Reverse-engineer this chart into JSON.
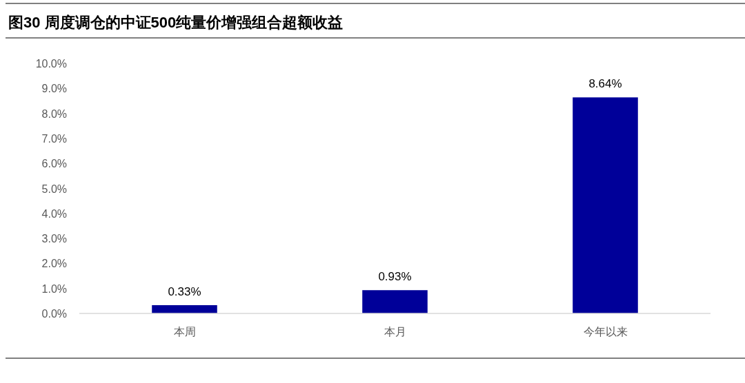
{
  "chart_data": {
    "type": "bar",
    "title": "图30 周度调仓的中证500纯量价增强组合超额收益",
    "categories": [
      "本周",
      "本月",
      "今年以来"
    ],
    "values": [
      0.33,
      0.93,
      8.64
    ],
    "value_labels": [
      "0.33%",
      "0.93%",
      "8.64%"
    ],
    "color": "#000099",
    "ylim": [
      0,
      10
    ],
    "yticks": [
      {
        "value": 0,
        "label": "0.0%"
      },
      {
        "value": 1,
        "label": "1.0%"
      },
      {
        "value": 2,
        "label": "2.0%"
      },
      {
        "value": 3,
        "label": "3.0%"
      },
      {
        "value": 4,
        "label": "4.0%"
      },
      {
        "value": 5,
        "label": "5.0%"
      },
      {
        "value": 6,
        "label": "6.0%"
      },
      {
        "value": 7,
        "label": "7.0%"
      },
      {
        "value": 8,
        "label": "8.0%"
      },
      {
        "value": 9,
        "label": "9.0%"
      },
      {
        "value": 10,
        "label": "10.0%"
      }
    ],
    "grid": false
  }
}
